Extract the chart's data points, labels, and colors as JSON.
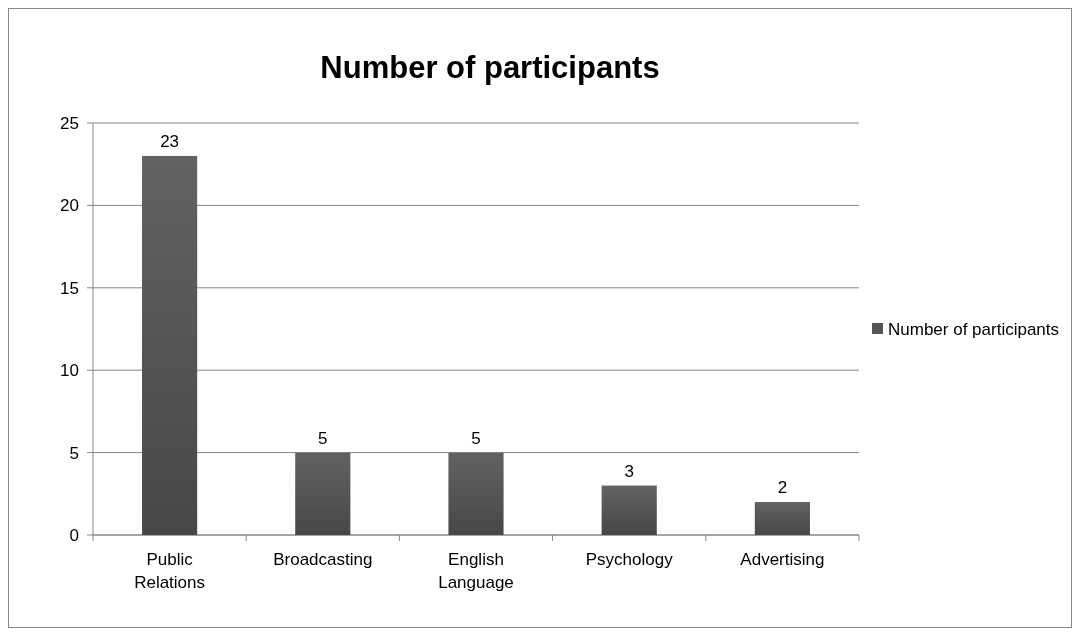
{
  "chart_data": {
    "type": "bar",
    "title": "Number of participants",
    "categories": [
      "Public Relations",
      "Broadcasting",
      "English Language",
      "Psychology",
      "Advertising"
    ],
    "series": [
      {
        "name": "Number of participants",
        "color": "#555555",
        "values": [
          23,
          5,
          5,
          3,
          2
        ]
      }
    ],
    "ylim": [
      0,
      25
    ],
    "yticks": [
      0,
      5,
      10,
      15,
      20,
      25
    ],
    "grid": "y",
    "legend": "right",
    "data_labels": true
  }
}
